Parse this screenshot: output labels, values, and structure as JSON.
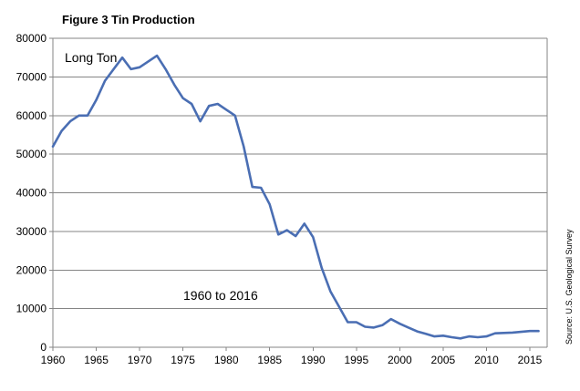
{
  "chart_data": {
    "type": "line",
    "title": "Figure 3 Tin Production",
    "annotations": {
      "unit": "Long Ton",
      "range": "1960 to 2016"
    },
    "source": "Source: U.S. Geological Survey",
    "xlabel": "",
    "ylabel": "",
    "xlim": [
      1960,
      2017
    ],
    "ylim": [
      0,
      80000
    ],
    "x_ticks": [
      1960,
      1965,
      1970,
      1975,
      1980,
      1985,
      1990,
      1995,
      2000,
      2005,
      2010,
      2015
    ],
    "y_ticks": [
      0,
      10000,
      20000,
      30000,
      40000,
      50000,
      60000,
      70000,
      80000
    ],
    "grid": true,
    "legend": "none",
    "line_color": "#4a6eb3",
    "series": [
      {
        "x": [
          1960,
          1961,
          1962,
          1963,
          1964,
          1965,
          1966,
          1967,
          1968,
          1969,
          1970,
          1971,
          1972,
          1973,
          1974,
          1975,
          1976,
          1977,
          1978,
          1979,
          1980,
          1981,
          1982,
          1983,
          1984,
          1985,
          1986,
          1987,
          1988,
          1989,
          1990,
          1991,
          1992,
          1993,
          1994,
          1995,
          1996,
          1997,
          1998,
          1999,
          2000,
          2001,
          2002,
          2003,
          2004,
          2005,
          2006,
          2007,
          2008,
          2009,
          2010,
          2011,
          2012,
          2013,
          2014,
          2015,
          2016
        ],
        "values": [
          52000,
          56000,
          58500,
          60000,
          60000,
          64000,
          69000,
          72000,
          75000,
          72000,
          72500,
          74000,
          75500,
          72000,
          68000,
          64500,
          63000,
          58500,
          62500,
          63000,
          61500,
          60000,
          52000,
          41500,
          41300,
          37000,
          29200,
          30300,
          28800,
          32000,
          28500,
          20500,
          14500,
          10500,
          6500,
          6500,
          5300,
          5100,
          5700,
          7300,
          6100,
          5100,
          4100,
          3500,
          2800,
          3000,
          2600,
          2300,
          2800,
          2600,
          2800,
          3600,
          3700,
          3800,
          4000,
          4200,
          4200
        ]
      }
    ]
  }
}
